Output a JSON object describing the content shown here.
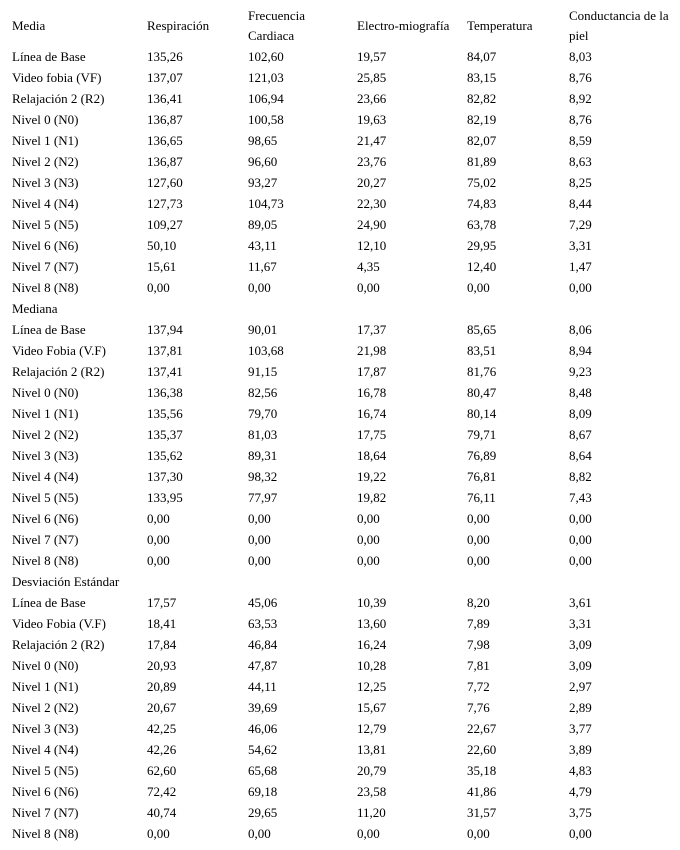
{
  "table": {
    "header": [
      "Media",
      "Respiración",
      "Frecuencia Cardiaca",
      "Electro-miografía",
      "Temperatura",
      "Conductancia de la piel"
    ],
    "rows": [
      [
        "Línea de Base",
        "135,26",
        "102,60",
        "19,57",
        "84,07",
        "8,03"
      ],
      [
        "Video fobia (VF)",
        "137,07",
        "121,03",
        "25,85",
        "83,15",
        "8,76"
      ],
      [
        "Relajación 2 (R2)",
        "136,41",
        "106,94",
        "23,66",
        "82,82",
        "8,92"
      ],
      [
        "Nivel 0 (N0)",
        "136,87",
        "100,58",
        "19,63",
        "82,19",
        "8,76"
      ],
      [
        "Nivel 1 (N1)",
        "136,65",
        "98,65",
        "21,47",
        "82,07",
        "8,59"
      ],
      [
        "Nivel 2 (N2)",
        "136,87",
        "96,60",
        "23,76",
        "81,89",
        "8,63"
      ],
      [
        "Nivel 3 (N3)",
        "127,60",
        "93,27",
        "20,27",
        "75,02",
        "8,25"
      ],
      [
        "Nivel 4 (N4)",
        "127,73",
        "104,73",
        "22,30",
        "74,83",
        "8,44"
      ],
      [
        "Nivel 5 (N5)",
        "109,27",
        "89,05",
        "24,90",
        "63,78",
        "7,29"
      ],
      [
        "Nivel 6 (N6)",
        "50,10",
        "43,11",
        "12,10",
        "29,95",
        "3,31"
      ],
      [
        "Nivel 7 (N7)",
        "15,61",
        "11,67",
        "4,35",
        "12,40",
        "1,47"
      ],
      [
        "Nivel 8 (N8)",
        "0,00",
        "0,00",
        "0,00",
        "0,00",
        "0,00"
      ],
      [
        "Mediana"
      ],
      [
        "Línea de Base",
        "137,94",
        "90,01",
        "17,37",
        "85,65",
        "8,06"
      ],
      [
        "Video Fobia (V.F)",
        "137,81",
        "103,68",
        "21,98",
        "83,51",
        "8,94"
      ],
      [
        "Relajación 2 (R2)",
        "137,41",
        "91,15",
        "17,87",
        "81,76",
        "9,23"
      ],
      [
        "Nivel 0 (N0)",
        "136,38",
        "82,56",
        "16,78",
        "80,47",
        "8,48"
      ],
      [
        "Nivel 1 (N1)",
        "135,56",
        "79,70",
        "16,74",
        "80,14",
        "8,09"
      ],
      [
        "Nivel 2 (N2)",
        "135,37",
        "81,03",
        "17,75",
        "79,71",
        "8,67"
      ],
      [
        "Nivel 3 (N3)",
        "135,62",
        "89,31",
        "18,64",
        "76,89",
        "8,64"
      ],
      [
        "Nivel 4 (N4)",
        "137,30",
        "98,32",
        "19,22",
        "76,81",
        "8,82"
      ],
      [
        "Nivel 5 (N5)",
        "133,95",
        "77,97",
        "19,82",
        "76,11",
        "7,43"
      ],
      [
        "Nivel 6 (N6)",
        "0,00",
        "0,00",
        "0,00",
        "0,00",
        "0,00"
      ],
      [
        "Nivel 7 (N7)",
        "0,00",
        "0,00",
        "0,00",
        "0,00",
        "0,00"
      ],
      [
        "Nivel 8 (N8)",
        "0,00",
        "0,00",
        "0,00",
        "0,00",
        "0,00"
      ],
      [
        "Desviación Estándar"
      ],
      [
        "Línea de Base",
        "17,57",
        "45,06",
        "10,39",
        "8,20",
        "3,61"
      ],
      [
        "Video Fobia (V.F)",
        "18,41",
        "63,53",
        "13,60",
        "7,89",
        "3,31"
      ],
      [
        "Relajación 2 (R2)",
        "17,84",
        "46,84",
        "16,24",
        "7,98",
        "3,09"
      ],
      [
        "Nivel 0 (N0)",
        "20,93",
        "47,87",
        "10,28",
        "7,81",
        "3,09"
      ],
      [
        "Nivel 1 (N1)",
        "20,89",
        "44,11",
        "12,25",
        "7,72",
        "2,97"
      ],
      [
        "Nivel 2 (N2)",
        "20,67",
        "39,69",
        "15,67",
        "7,76",
        "2,89"
      ],
      [
        "Nivel 3 (N3)",
        "42,25",
        "46,06",
        "12,79",
        "22,67",
        "3,77"
      ],
      [
        "Nivel 4 (N4)",
        "42,26",
        "54,62",
        "13,81",
        "22,60",
        "3,89"
      ],
      [
        "Nivel 5 (N5)",
        "62,60",
        "65,68",
        "20,79",
        "35,18",
        "4,83"
      ],
      [
        "Nivel 6 (N6)",
        "72,42",
        "69,18",
        "23,58",
        "41,86",
        "4,79"
      ],
      [
        "Nivel 7 (N7)",
        "40,74",
        "29,65",
        "11,20",
        "31,57",
        "3,75"
      ],
      [
        "Nivel 8 (N8)",
        "0,00",
        "0,00",
        "0,00",
        "0,00",
        "0,00"
      ]
    ]
  }
}
